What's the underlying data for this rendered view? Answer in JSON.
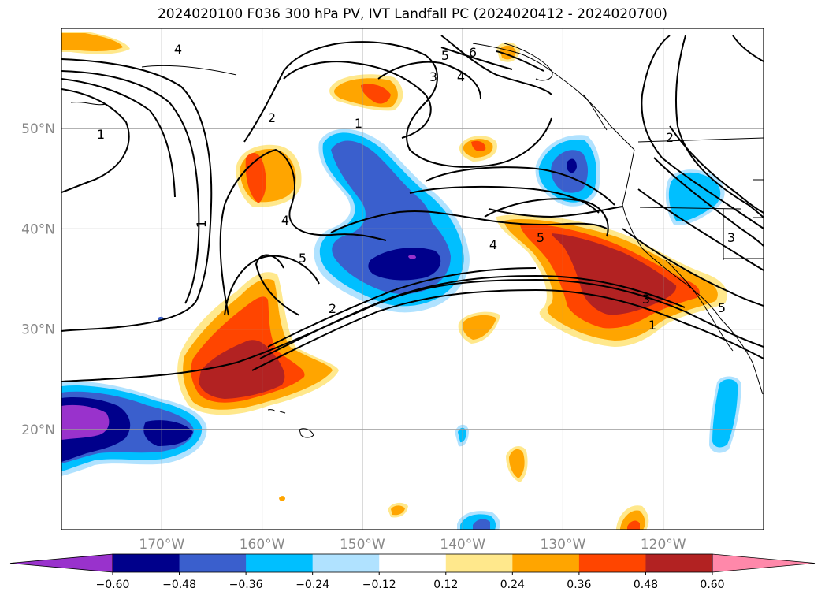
{
  "title": "2024020100 F036 300 hPa PV, IVT Landfall PC (2024020412 - 2024020700)",
  "chart_data": {
    "type": "map-contour",
    "region": {
      "lon_range": [
        -180,
        -110
      ],
      "lat_range": [
        10,
        60
      ]
    },
    "lon_ticks": [
      {
        "value": -170,
        "label": "170°W"
      },
      {
        "value": -160,
        "label": "160°W"
      },
      {
        "value": -150,
        "label": "150°W"
      },
      {
        "value": -140,
        "label": "140°W"
      },
      {
        "value": -130,
        "label": "130°W"
      },
      {
        "value": -120,
        "label": "120°W"
      }
    ],
    "lat_ticks": [
      {
        "value": 20,
        "label": "20°N"
      },
      {
        "value": 30,
        "label": "30°N"
      },
      {
        "value": 40,
        "label": "40°N"
      },
      {
        "value": 50,
        "label": "50°N"
      }
    ],
    "grid": true,
    "colorbar": {
      "orientation": "horizontal",
      "extend": "both",
      "tick_labels": [
        "−0.60",
        "−0.48",
        "−0.36",
        "−0.24",
        "−0.12",
        "0.12",
        "0.24",
        "0.36",
        "0.48",
        "0.60"
      ],
      "colors": [
        "#9932cc",
        "#00008b",
        "#3a5fcd",
        "#00bfff",
        "#b0e2ff",
        "#ffffff",
        "#ffe88c",
        "#ffa500",
        "#ff4500",
        "#b22222",
        "#ff88aa"
      ]
    },
    "contour_labels": [
      "1",
      "2",
      "3",
      "4",
      "5",
      "6"
    ]
  }
}
